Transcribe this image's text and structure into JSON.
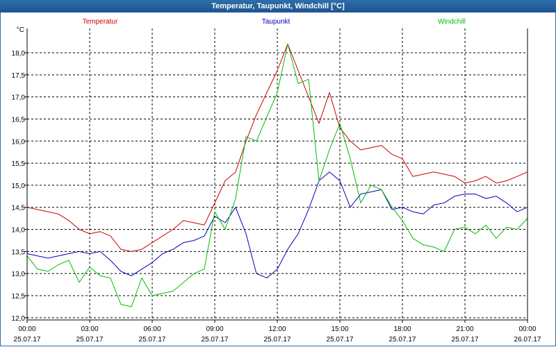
{
  "window": {
    "title": "Temperatur, Taupunkt, Windchill [°C]"
  },
  "chart_data": {
    "type": "line",
    "title": "Temperatur, Taupunkt, Windchill [°C]",
    "ylabel": "°C",
    "ylim": [
      11.95,
      18.55
    ],
    "xlim": [
      0,
      24
    ],
    "grid": true,
    "legend": "top",
    "y_ticks": [
      "12,0",
      "12,5",
      "13,0",
      "13,5",
      "14,0",
      "14,5",
      "15,0",
      "15,5",
      "16,0",
      "16,5",
      "17,0",
      "17,5",
      "18,0"
    ],
    "x_ticks": [
      {
        "time": "00:00",
        "date": "25.07.17"
      },
      {
        "time": "03:00",
        "date": "25.07.17"
      },
      {
        "time": "06:00",
        "date": "25.07.17"
      },
      {
        "time": "09:00",
        "date": "25.07.17"
      },
      {
        "time": "12:00",
        "date": "25.07.17"
      },
      {
        "time": "15:00",
        "date": "25.07.17"
      },
      {
        "time": "18:00",
        "date": "25.07.17"
      },
      {
        "time": "21:00",
        "date": "25.07.17"
      },
      {
        "time": "00:00",
        "date": "26.07.17"
      }
    ],
    "x": [
      "00:00",
      "00:30",
      "01:00",
      "01:30",
      "02:00",
      "02:30",
      "03:00",
      "03:30",
      "04:00",
      "04:30",
      "05:00",
      "05:30",
      "06:00",
      "06:30",
      "07:00",
      "07:30",
      "08:00",
      "08:30",
      "09:00",
      "09:30",
      "10:00",
      "10:30",
      "11:00",
      "11:30",
      "12:00",
      "12:30",
      "13:00",
      "13:30",
      "14:00",
      "14:30",
      "15:00",
      "15:30",
      "16:00",
      "16:30",
      "17:00",
      "17:30",
      "18:00",
      "18:30",
      "19:00",
      "19:30",
      "20:00",
      "20:30",
      "21:00",
      "21:30",
      "22:00",
      "22:30",
      "23:00",
      "23:30",
      "24:00"
    ],
    "series": [
      {
        "name": "Temperatur",
        "color": "#cc0000",
        "values": [
          14.5,
          14.45,
          14.4,
          14.35,
          14.2,
          14.0,
          13.9,
          13.95,
          13.85,
          13.55,
          13.5,
          13.55,
          13.7,
          13.85,
          14.0,
          14.2,
          14.15,
          14.1,
          14.6,
          15.1,
          15.3,
          16.0,
          16.6,
          17.1,
          17.6,
          18.2,
          17.6,
          17.0,
          16.4,
          17.1,
          16.3,
          16.0,
          15.8,
          15.85,
          15.9,
          15.7,
          15.6,
          15.2,
          15.25,
          15.3,
          15.25,
          15.2,
          15.05,
          15.1,
          15.2,
          15.05,
          15.1,
          15.2,
          15.3
        ]
      },
      {
        "name": "Taupunkt",
        "color": "#0000bb",
        "values": [
          13.45,
          13.4,
          13.35,
          13.4,
          13.45,
          13.5,
          13.45,
          13.5,
          13.3,
          13.05,
          12.95,
          13.1,
          13.25,
          13.45,
          13.55,
          13.7,
          13.75,
          13.85,
          14.3,
          14.15,
          14.5,
          13.9,
          13.0,
          12.9,
          13.1,
          13.55,
          13.9,
          14.45,
          15.1,
          15.3,
          15.1,
          14.5,
          14.8,
          14.85,
          14.9,
          14.45,
          14.5,
          14.4,
          14.35,
          14.55,
          14.6,
          14.75,
          14.8,
          14.8,
          14.7,
          14.75,
          14.6,
          14.4,
          14.5
        ]
      },
      {
        "name": "Windchill",
        "color": "#00bb00",
        "values": [
          13.4,
          13.1,
          13.05,
          13.2,
          13.3,
          12.8,
          13.15,
          12.95,
          12.9,
          12.3,
          12.25,
          12.9,
          12.5,
          12.55,
          12.6,
          12.8,
          13.0,
          13.1,
          14.4,
          14.0,
          14.7,
          16.1,
          16.0,
          16.55,
          17.1,
          18.2,
          17.3,
          17.4,
          15.1,
          15.8,
          16.4,
          15.6,
          14.6,
          15.0,
          14.9,
          14.5,
          14.2,
          13.8,
          13.65,
          13.6,
          13.5,
          14.0,
          14.05,
          13.9,
          14.1,
          13.8,
          14.05,
          14.0,
          14.25
        ]
      }
    ]
  }
}
